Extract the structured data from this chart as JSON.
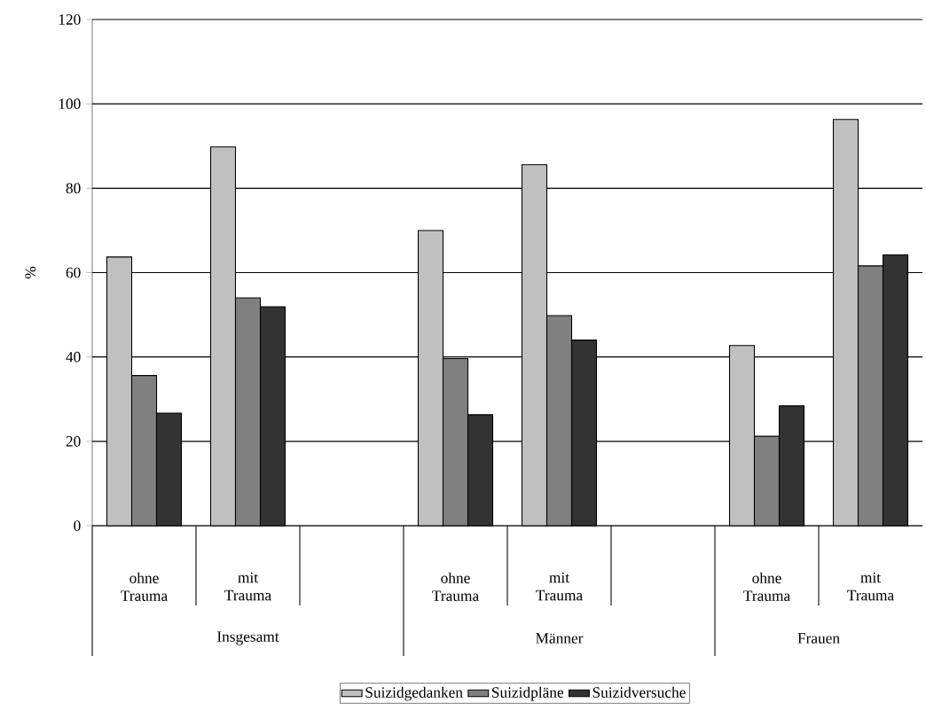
{
  "chart_data": {
    "type": "bar",
    "ylabel": "%",
    "categories": [
      "ohne Trauma",
      "mit Trauma",
      null,
      "ohne Trauma",
      "mit Trauma",
      null,
      "ohne Trauma",
      "mit Trauma"
    ],
    "annotations": [
      "Insgesamt",
      "Männer",
      "Frauen"
    ],
    "series": [
      {
        "name": "Suizidgedanken",
        "color": "#c0c0c0",
        "values": [
          63.7,
          89.8,
          null,
          70.0,
          85.6,
          null,
          42.7,
          96.3
        ]
      },
      {
        "name": "Suizidpläne",
        "color": "#808080",
        "values": [
          35.6,
          54.0,
          null,
          39.6,
          49.8,
          null,
          21.2,
          61.6
        ]
      },
      {
        "name": "Suizidversuche",
        "color": "#333333",
        "values": [
          26.7,
          51.9,
          null,
          26.3,
          44.0,
          null,
          28.4,
          64.2
        ]
      }
    ],
    "ylim": [
      0,
      120
    ],
    "yticks": [
      0,
      20,
      40,
      60,
      80,
      100,
      120
    ],
    "grid": "y",
    "legend": "bottom"
  }
}
